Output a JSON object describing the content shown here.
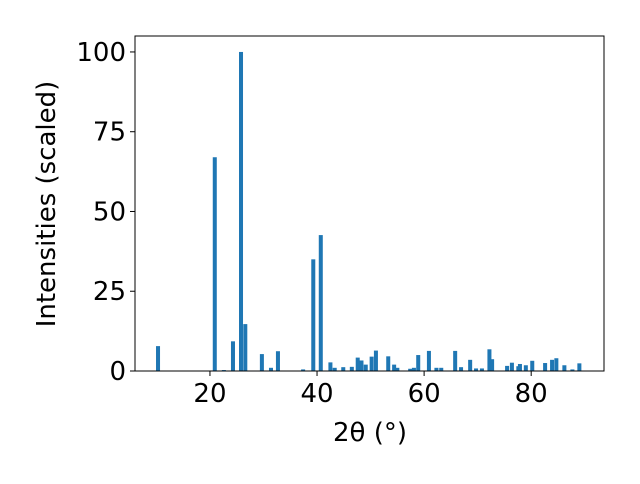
{
  "chart_data": {
    "type": "bar",
    "xlabel": "2θ (°)",
    "ylabel": "Intensities (scaled)",
    "color": "#1f77b4",
    "x": [
      10.3,
      20.9,
      22.6,
      24.3,
      25.8,
      26.6,
      29.7,
      31.4,
      32.7,
      37.4,
      39.3,
      40.7,
      42.5,
      43.3,
      44.9,
      46.5,
      47.6,
      48.3,
      49.1,
      50.2,
      51.0,
      53.3,
      54.4,
      55.0,
      57.4,
      58.1,
      58.9,
      60.9,
      62.3,
      63.2,
      65.8,
      66.9,
      68.6,
      69.7,
      70.8,
      72.2,
      72.7,
      75.5,
      76.4,
      77.6,
      77.9,
      79.0,
      80.2,
      82.6,
      83.9,
      84.7,
      86.2,
      87.7,
      89.0
    ],
    "values": [
      7.8,
      67,
      0.3,
      9.3,
      100,
      14.7,
      5.3,
      1,
      6.2,
      0.5,
      35,
      42.6,
      2.7,
      1,
      1.2,
      1.3,
      4.2,
      3.3,
      2,
      4.5,
      6.4,
      4.6,
      2,
      1,
      0.7,
      1,
      5,
      6.3,
      1,
      1,
      6.3,
      1.2,
      3.5,
      0.8,
      0.8,
      6.8,
      3.7,
      1.6,
      2.6,
      1.5,
      2.2,
      1.8,
      3.2,
      2.5,
      3.5,
      4,
      1.8,
      0.5,
      2.4
    ],
    "xlim": [
      6.0,
      93.6
    ],
    "ylim": [
      0,
      105
    ],
    "xticks": [
      20,
      40,
      60,
      80
    ],
    "yticks": [
      0,
      25,
      50,
      75,
      100
    ]
  }
}
